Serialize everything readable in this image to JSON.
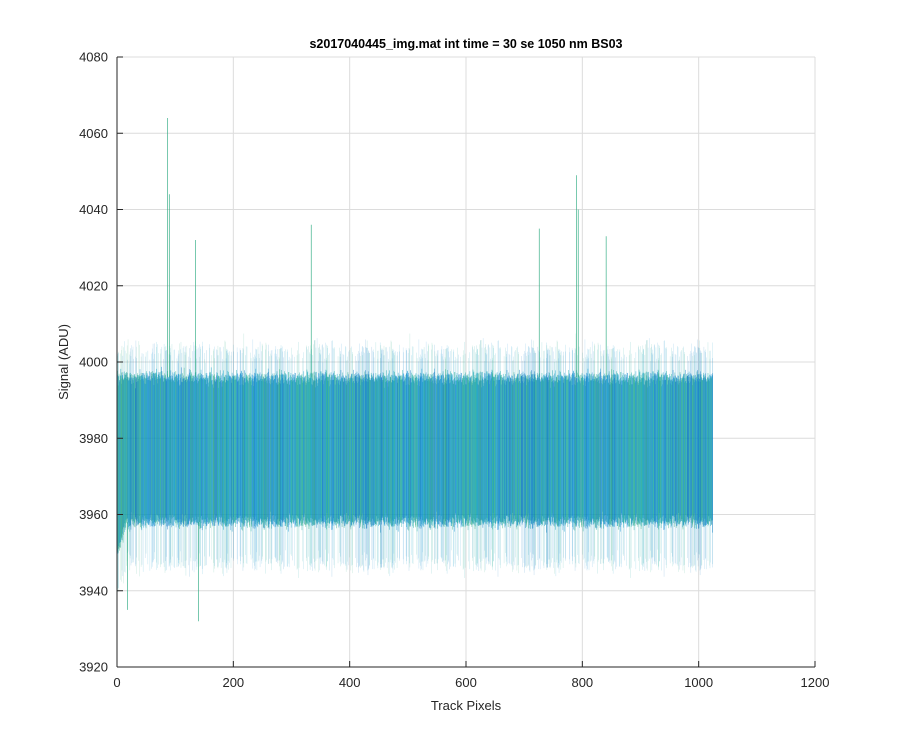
{
  "chart_data": {
    "type": "line",
    "title": "s2017040445_img.mat int time = 30 se  1050 nm BS03",
    "xlabel": "Track Pixels",
    "ylabel": "Signal (ADU)",
    "xlim": [
      0,
      1200
    ],
    "ylim": [
      3920,
      4080
    ],
    "xticks": [
      0,
      200,
      400,
      600,
      800,
      1000,
      1200
    ],
    "yticks": [
      3920,
      3940,
      3960,
      3980,
      4000,
      4020,
      4040,
      4060,
      4080
    ],
    "xtick_labels": [
      "0",
      "200",
      "400",
      "600",
      "800",
      "1000",
      "1200"
    ],
    "ytick_labels": [
      "3920",
      "3940",
      "3960",
      "3980",
      "4000",
      "4020",
      "4040",
      "4060",
      "4080"
    ],
    "grid": true,
    "x_range": [
      1,
      1024
    ],
    "band": {
      "core_low": 3958,
      "core_high": 3996,
      "outer_low": 3947,
      "outer_high": 4003,
      "mean": 3975
    },
    "spikes": [
      {
        "x": 87,
        "value": 4064
      },
      {
        "x": 90,
        "value": 4044
      },
      {
        "x": 135,
        "value": 4032
      },
      {
        "x": 140,
        "value": 3932
      },
      {
        "x": 334,
        "value": 4036
      },
      {
        "x": 726,
        "value": 4035
      },
      {
        "x": 790,
        "value": 4049
      },
      {
        "x": 793,
        "value": 4040
      },
      {
        "x": 841,
        "value": 4033
      },
      {
        "x": 18,
        "value": 3935
      }
    ],
    "colors": [
      "#0072BD",
      "#0A9BC9",
      "#14A8A0",
      "#2BAA80",
      "#1B8FD9"
    ]
  }
}
